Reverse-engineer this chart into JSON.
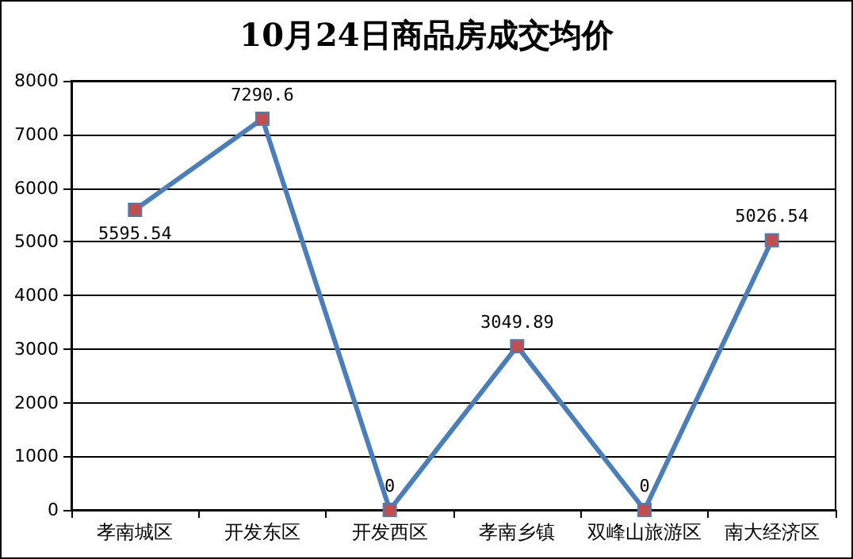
{
  "chart_data": {
    "type": "line",
    "title": "10月24日商品房成交均价",
    "categories": [
      "孝南城区",
      "开发东区",
      "开发西区",
      "孝南乡镇",
      "双峰山旅游区",
      "南大经济区"
    ],
    "series": [
      {
        "color": "#4a7ebb",
        "values": [
          5595.54,
          7290.6,
          0,
          3049.89,
          0,
          5026.54
        ]
      }
    ],
    "ylim": [
      0,
      8000
    ],
    "yticks": [
      0,
      1000,
      2000,
      3000,
      4000,
      5000,
      6000,
      7000,
      8000
    ],
    "grid": "y",
    "marker": "square",
    "line_style": "solid",
    "data_labels": true
  }
}
